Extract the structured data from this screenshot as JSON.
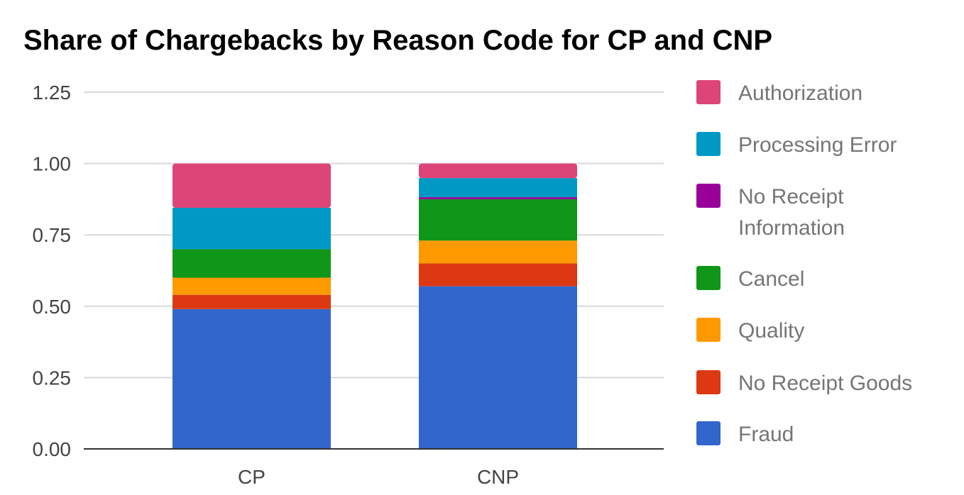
{
  "chart_data": {
    "type": "bar",
    "stacked": true,
    "title": "Share of Chargebacks by Reason Code for CP and CNP",
    "xlabel": "",
    "ylabel": "",
    "ylim": [
      0,
      1.25
    ],
    "yticks": [
      "0.00",
      "0.25",
      "0.50",
      "0.75",
      "1.00",
      "1.25"
    ],
    "ytick_values": [
      0,
      0.25,
      0.5,
      0.75,
      1.0,
      1.25
    ],
    "grid": true,
    "legend_position": "right",
    "categories": [
      "CP",
      "CNP"
    ],
    "series": [
      {
        "name": "Fraud",
        "color": "#3366cc",
        "values": [
          0.49,
          0.57
        ]
      },
      {
        "name": "No Receipt Goods",
        "color": "#dc3912",
        "values": [
          0.05,
          0.08
        ]
      },
      {
        "name": "Quality",
        "color": "#ff9900",
        "values": [
          0.06,
          0.08
        ]
      },
      {
        "name": "Cancel",
        "color": "#109618",
        "values": [
          0.1,
          0.145
        ]
      },
      {
        "name": "No Receipt Information",
        "color": "#990099",
        "values": [
          0.0,
          0.007
        ]
      },
      {
        "name": "Processing Error",
        "color": "#0099c6",
        "values": [
          0.145,
          0.067
        ]
      },
      {
        "name": "Authorization",
        "color": "#dd4477",
        "values": [
          0.155,
          0.051
        ]
      }
    ],
    "legend_lines": {
      "No Receipt Information": [
        "No Receipt",
        "Information"
      ]
    }
  }
}
